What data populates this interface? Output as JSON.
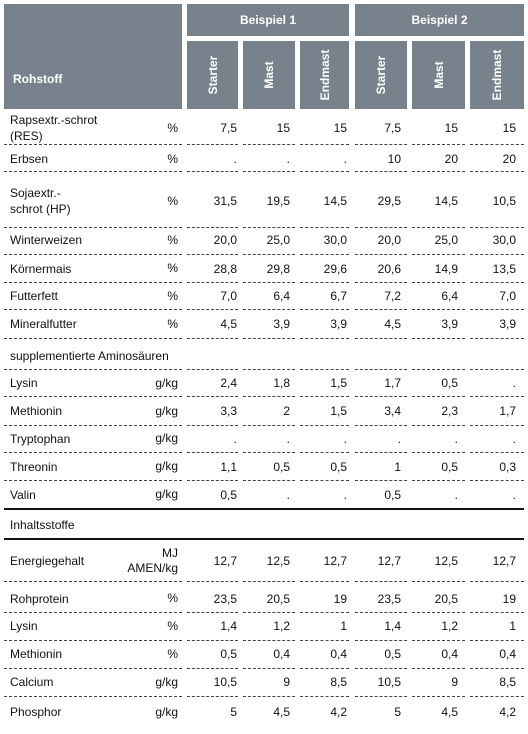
{
  "header": {
    "rohstoff_label": "Rohstoff",
    "groups": [
      {
        "label": "Beispiel 1",
        "subs": [
          "Starter",
          "Mast",
          "Endmast"
        ]
      },
      {
        "label": "Beispiel 2",
        "subs": [
          "Starter",
          "Mast",
          "Endmast"
        ]
      }
    ]
  },
  "sections": {
    "amino_title": "supplementierte Aminosäuren",
    "inhalt_title": "Inhaltsstoffe"
  },
  "rows": [
    {
      "name": "Rapsextr.-schrot\n(RES)",
      "unit": "%",
      "values": [
        "7,5",
        "15",
        "15",
        "7,5",
        "15",
        "15"
      ]
    },
    {
      "name": "Erbsen",
      "unit": "%",
      "values": [
        ".",
        ".",
        ".",
        "10",
        "20",
        "20"
      ]
    },
    {
      "name": "Sojaextr.-\nschrot (HP)",
      "unit": "%",
      "values": [
        "31,5",
        "19,5",
        "14,5",
        "29,5",
        "14,5",
        "10,5"
      ]
    },
    {
      "name": "Winterweizen",
      "unit": "%",
      "values": [
        "20,0",
        "25,0",
        "30,0",
        "20,0",
        "25,0",
        "30,0"
      ]
    },
    {
      "name": "Körnermais",
      "unit": "%",
      "values": [
        "28,8",
        "29,8",
        "29,6",
        "20,6",
        "14,9",
        "13,5"
      ]
    },
    {
      "name": "Futterfett",
      "unit": "%",
      "values": [
        "7,0",
        "6,4",
        "6,7",
        "7,2",
        "6,4",
        "7,0"
      ]
    },
    {
      "name": "Mineralfutter",
      "unit": "%",
      "values": [
        "4,5",
        "3,9",
        "3,9",
        "4,5",
        "3,9",
        "3,9"
      ]
    },
    {
      "name": "Lysin",
      "unit": "g/kg",
      "values": [
        "2,4",
        "1,8",
        "1,5",
        "1,7",
        "0,5",
        "."
      ]
    },
    {
      "name": "Methionin",
      "unit": "g/kg",
      "values": [
        "3,3",
        "2",
        "1,5",
        "3,4",
        "2,3",
        "1,7"
      ]
    },
    {
      "name": "Tryptophan",
      "unit": "g/kg",
      "values": [
        ".",
        ".",
        ".",
        ".",
        ".",
        "."
      ]
    },
    {
      "name": "Threonin",
      "unit": "g/kg",
      "values": [
        "1,1",
        "0,5",
        "0,5",
        "1",
        "0,5",
        "0,3"
      ]
    },
    {
      "name": "Valin",
      "unit": "g/kg",
      "values": [
        "0,5",
        ".",
        ".",
        "0,5",
        ".",
        "."
      ]
    },
    {
      "name": "Energiegehalt",
      "unit": "MJ\nAMEN/kg",
      "values": [
        "12,7",
        "12,5",
        "12,7",
        "12,7",
        "12,5",
        "12,7"
      ]
    },
    {
      "name": "Rohprotein",
      "unit": "%",
      "values": [
        "23,5",
        "20,5",
        "19",
        "23,5",
        "20,5",
        "19"
      ]
    },
    {
      "name": "Lysin",
      "unit": "%",
      "values": [
        "1,4",
        "1,2",
        "1",
        "1,4",
        "1,2",
        "1"
      ]
    },
    {
      "name": "Methionin",
      "unit": "%",
      "values": [
        "0,5",
        "0,4",
        "0,4",
        "0,5",
        "0,4",
        "0,4"
      ]
    },
    {
      "name": "Calcium",
      "unit": "g/kg",
      "values": [
        "10,5",
        "9",
        "8,5",
        "10,5",
        "9",
        "8,5"
      ]
    },
    {
      "name": "Phosphor",
      "unit": "g/kg",
      "values": [
        "5",
        "4,5",
        "4,2",
        "5",
        "4,5",
        "4,2"
      ]
    }
  ]
}
